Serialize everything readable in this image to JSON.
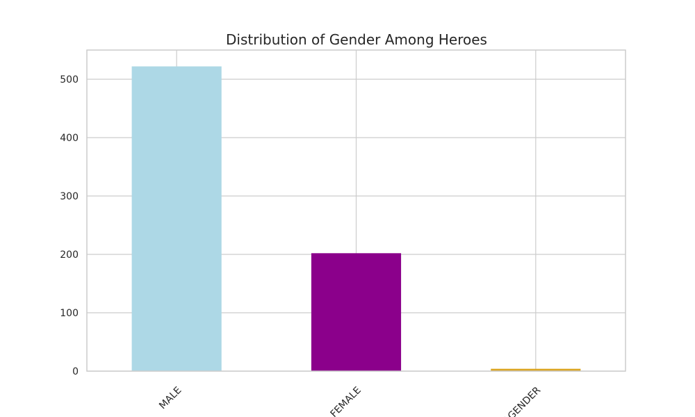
{
  "chart_data": {
    "type": "bar",
    "title": "Distribution of Gender Among Heroes",
    "xlabel": "",
    "ylabel": "",
    "categories": [
      "MALE",
      "FEMALE",
      "AGENDER"
    ],
    "values": [
      522,
      202,
      4
    ],
    "colors": [
      "#add8e6",
      "#8b008b",
      "#daa520"
    ],
    "ylim": [
      0,
      550
    ],
    "yticks": [
      0,
      100,
      200,
      300,
      400,
      500
    ],
    "grid": true,
    "legend": "none"
  }
}
